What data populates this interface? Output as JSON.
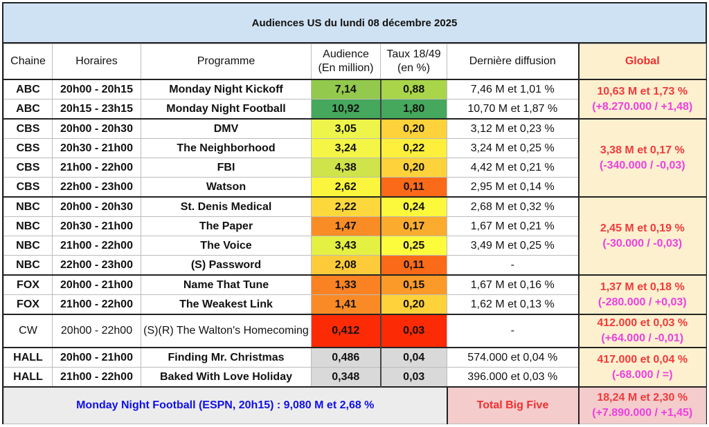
{
  "title": "Audiences US du lundi 08 décembre 2025",
  "headers": {
    "chaine": "Chaine",
    "horaires": "Horaires",
    "programme": "Programme",
    "audience": [
      "Audience",
      "(En million)"
    ],
    "taux": [
      "Taux 18/49",
      "(en %)"
    ],
    "derniere": "Dernière diffusion",
    "global": "Global"
  },
  "groups": [
    {
      "global": [
        "10,63 M et 1,73 %",
        "(+8.270.000 / +1,48)"
      ],
      "rows": [
        {
          "chaine": "ABC",
          "horaires": "20h00 - 20h15",
          "programme": "Monday Night Kickoff",
          "audience": "7,14",
          "taux": "0,88",
          "derniere": "7,46 M et 1,01 %",
          "aud_color": "#93c94c",
          "taux_color": "#a9d54a"
        },
        {
          "chaine": "ABC",
          "horaires": "20h15 - 23h15",
          "programme": "Monday Night Football",
          "audience": "10,92",
          "taux": "1,80",
          "derniere": "10,70 M et 1,87 %",
          "aud_color": "#45a85c",
          "taux_color": "#45a85c"
        }
      ]
    },
    {
      "global": [
        "3,38 M et 0,17 %",
        "(-340.000 / -0,03)"
      ],
      "rows": [
        {
          "chaine": "CBS",
          "horaires": "20h00 - 20h30",
          "programme": "DMV",
          "audience": "3,05",
          "taux": "0,20",
          "derniere": "3,12 M et 0,23 %",
          "aud_color": "#eef54a",
          "taux_color": "#fdd23a"
        },
        {
          "chaine": "CBS",
          "horaires": "20h30 - 21h00",
          "programme": "The Neighborhood",
          "audience": "3,24",
          "taux": "0,22",
          "derniere": "3,24 M et 0,25 %",
          "aud_color": "#f4f545",
          "taux_color": "#fdef3c"
        },
        {
          "chaine": "CBS",
          "horaires": "21h00 - 22h00",
          "programme": "FBI",
          "audience": "4,38",
          "taux": "0,20",
          "derniere": "4,42 M et 0,21 %",
          "aud_color": "#cfe34a",
          "taux_color": "#fdd23a"
        },
        {
          "chaine": "CBS",
          "horaires": "22h00 - 23h00",
          "programme": "Watson",
          "audience": "2,62",
          "taux": "0,11",
          "derniere": "2,95 M et 0,14 %",
          "aud_color": "#fbf63d",
          "taux_color": "#fb6a18"
        }
      ]
    },
    {
      "global": [
        "2,45 M et 0,19 %",
        "(-30.000 / -0,03)"
      ],
      "rows": [
        {
          "chaine": "NBC",
          "horaires": "20h00 - 20h30",
          "programme": "St. Denis Medical",
          "audience": "2,22",
          "taux": "0,24",
          "derniere": "2,68 M et 0,32 %",
          "aud_color": "#fdd83c",
          "taux_color": "#fcf83c"
        },
        {
          "chaine": "NBC",
          "horaires": "20h30 - 21h00",
          "programme": "The Paper",
          "audience": "1,47",
          "taux": "0,17",
          "derniere": "1,67 M et 0,21 %",
          "aud_color": "#fa8c25",
          "taux_color": "#fbac2e"
        },
        {
          "chaine": "NBC",
          "horaires": "21h00 - 22h00",
          "programme": "The Voice",
          "audience": "3,43",
          "taux": "0,25",
          "derniere": "3,49 M et 0,25 %",
          "aud_color": "#e4f042",
          "taux_color": "#fcfb3c"
        },
        {
          "chaine": "NBC",
          "horaires": "22h00 - 23h00",
          "programme": "(S) Password",
          "audience": "2,08",
          "taux": "0,11",
          "derniere": "-",
          "aud_color": "#fdcb3a",
          "taux_color": "#fb6a18"
        }
      ]
    },
    {
      "global": [
        "1,37 M et 0,18 %",
        "(-280.000 / +0,03)"
      ],
      "rows": [
        {
          "chaine": "FOX",
          "horaires": "20h00 - 21h00",
          "programme": "Name That Tune",
          "audience": "1,33",
          "taux": "0,15",
          "derniere": "1,67 M et 0,16 %",
          "aud_color": "#fa8223",
          "taux_color": "#fb9a28"
        },
        {
          "chaine": "FOX",
          "horaires": "21h00 - 22h00",
          "programme": "The Weakest Link",
          "audience": "1,41",
          "taux": "0,20",
          "derniere": "1,62 M et 0,13 %",
          "aud_color": "#fa8a26",
          "taux_color": "#fdd23a"
        }
      ]
    },
    {
      "global": [
        "412.000 et 0,03 %",
        "(+64.000 / -0,01)"
      ],
      "tall": true,
      "normal": true,
      "rows": [
        {
          "chaine": "CW",
          "horaires": "20h00 - 22h00",
          "programme": "(S)(R) The Walton's Homecoming",
          "audience": "0,412",
          "taux": "0,03",
          "derniere": "-",
          "aud_color": "#fc2a05",
          "taux_color": "#fc2a05"
        }
      ]
    },
    {
      "global": [
        "417.000 et 0,04 %",
        "(-68.000 / =)"
      ],
      "rows": [
        {
          "chaine": "HALL",
          "horaires": "20h00 - 21h00",
          "programme": "Finding Mr. Christmas",
          "audience": "0,486",
          "taux": "0,04",
          "derniere": "574.000 et 0,04 %",
          "aud_color": "#d9d9d9",
          "taux_color": "#d9d9d9"
        },
        {
          "chaine": "HALL",
          "horaires": "21h00 - 22h00",
          "programme": "Baked With Love Holiday",
          "audience": "0,348",
          "taux": "0,03",
          "derniere": "396.000 et 0,03 %",
          "aud_color": "#d9d9d9",
          "taux_color": "#d9d9d9"
        }
      ]
    }
  ],
  "footer": {
    "note": "Monday Night Football (ESPN, 20h15) : 9,080 M et 2,68 %",
    "total_label": "Total Big Five",
    "total_value": [
      "18,24 M et 2,30 %",
      "(+7.890.000 / +1,45)"
    ]
  }
}
